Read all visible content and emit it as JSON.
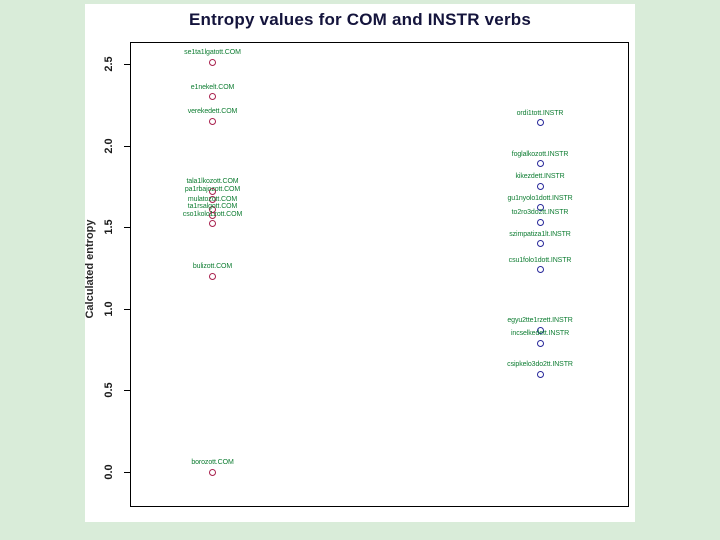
{
  "slide": {
    "background_color": "#d9ecd9",
    "title_color": "#14143c"
  },
  "chart_data": {
    "type": "scatter",
    "title": "Entropy values for COM and INSTR verbs",
    "xlabel": "",
    "ylabel": "Calculated entropy",
    "ylim": [
      -0.1,
      2.65
    ],
    "yticks": [
      "0.0",
      "0.5",
      "1.0",
      "1.5",
      "2.0",
      "2.5"
    ],
    "xticks": [],
    "grid": false,
    "legend_position": "none",
    "point_style": "open-circle",
    "series": [
      {
        "name": "COM",
        "point_color": "#a8224e",
        "label_color": "#0e7d32",
        "x_fraction": 0.166,
        "points": [
          {
            "label": "se1ta1lgatott.COM",
            "value": 2.51
          },
          {
            "label": "e1nekelt.COM",
            "value": 2.3
          },
          {
            "label": "verekedett.COM",
            "value": 2.15
          },
          {
            "label": "tala1lkozott.COM",
            "value": 1.72
          },
          {
            "label": "pa1rbajozott.COM",
            "value": 1.67
          },
          {
            "label": "mulatozott.COM",
            "value": 1.61
          },
          {
            "label": "ta1rsalgott.COM",
            "value": 1.57
          },
          {
            "label": "cso1kolo1zott.COM",
            "value": 1.52
          },
          {
            "label": "bulizott.COM",
            "value": 1.2
          },
          {
            "label": "borozott.COM",
            "value": 0.0
          }
        ]
      },
      {
        "name": "INSTR",
        "point_color": "#28289a",
        "label_color": "#0e7d32",
        "x_fraction": 0.825,
        "points": [
          {
            "label": "ordi1tott.INSTR",
            "value": 2.14
          },
          {
            "label": "foglalkozott.INSTR",
            "value": 1.89
          },
          {
            "label": "kikezdett.INSTR",
            "value": 1.75
          },
          {
            "label": "gu1nyolo1dott.INSTR",
            "value": 1.62
          },
          {
            "label": "to2ro3do2tt.INSTR",
            "value": 1.53
          },
          {
            "label": "szimpatiza1lt.INSTR",
            "value": 1.4
          },
          {
            "label": "csu1folo1dott.INSTR",
            "value": 1.24
          },
          {
            "label": "egyu2tte1rzett.INSTR",
            "value": 0.87
          },
          {
            "label": "incselkedett.INSTR",
            "value": 0.79
          },
          {
            "label": "csipkelo3do2tt.INSTR",
            "value": 0.6
          }
        ]
      }
    ]
  }
}
